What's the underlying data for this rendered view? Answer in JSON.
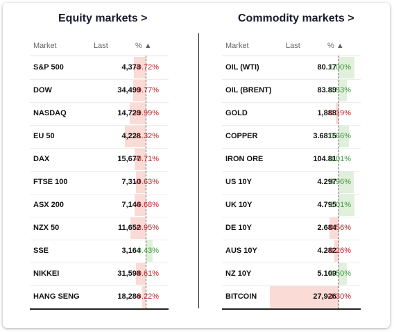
{
  "equity": {
    "title": "Equity markets >",
    "headers": {
      "market": "Market",
      "last": "Last",
      "pct": "% ▲"
    },
    "rows": [
      {
        "name": "S&P 500",
        "last": "4,373",
        "pct": "-0.72%",
        "value": -0.72
      },
      {
        "name": "DOW",
        "last": "34,499",
        "pct": "-0.77%",
        "value": -0.77
      },
      {
        "name": "NASDAQ",
        "last": "14,729",
        "pct": "-0.99%",
        "value": -0.99
      },
      {
        "name": "EU 50",
        "last": "4,228",
        "pct": "-1.32%",
        "value": -1.32
      },
      {
        "name": "DAX",
        "last": "15,677",
        "pct": "-0.71%",
        "value": -0.71
      },
      {
        "name": "FTSE 100",
        "last": "7,310",
        "pct": "-0.63%",
        "value": -0.63
      },
      {
        "name": "ASX 200",
        "last": "7,146",
        "pct": "-0.68%",
        "value": -0.68
      },
      {
        "name": "NZX 50",
        "last": "11,652",
        "pct": "-0.95%",
        "value": -0.95
      },
      {
        "name": "SSE",
        "last": "3,164",
        "pct": "0.43%",
        "value": 0.43
      },
      {
        "name": "NIKKEI",
        "last": "31,598",
        "pct": "-0.61%",
        "value": -0.61
      },
      {
        "name": "HANG SENG",
        "last": "18,286",
        "pct": "-0.22%",
        "value": -0.22
      }
    ]
  },
  "commodity": {
    "title": "Commodity markets >",
    "headers": {
      "market": "Market",
      "last": "Last",
      "pct": "% ▲"
    },
    "rows": [
      {
        "name": "OIL (WTI)",
        "last": "80.17",
        "pct": "1.00%",
        "value": 1.0
      },
      {
        "name": "OIL (BRENT)",
        "last": "83.89",
        "pct": "0.53%",
        "value": 0.53
      },
      {
        "name": "GOLD",
        "last": "1,888",
        "pct": "-0.19%",
        "value": -0.19
      },
      {
        "name": "COPPER",
        "last": "3.6815",
        "pct": "0.66%",
        "value": 0.66
      },
      {
        "name": "IRON ORE",
        "last": "104.81",
        "pct": "0.01%",
        "value": 0.01
      },
      {
        "name": "US 10Y",
        "last": "4.297",
        "pct": "0.96%",
        "value": 0.96
      },
      {
        "name": "UK 10Y",
        "last": "4.795",
        "pct": "1.01%",
        "value": 1.01
      },
      {
        "name": "DE 10Y",
        "last": "2.684",
        "pct": "-0.56%",
        "value": -0.56
      },
      {
        "name": "AUS 10Y",
        "last": "4.282",
        "pct": "-0.26%",
        "value": -0.26
      },
      {
        "name": "NZ 10Y",
        "last": "5.109",
        "pct": "0.50%",
        "value": 0.5
      },
      {
        "name": "BITCOIN",
        "last": "27,926",
        "pct": "-4.30%",
        "value": -4.3
      }
    ]
  },
  "colors": {
    "negative": "#c0202a",
    "negative_bg": "#fadbd5",
    "positive": "#3e9a3e",
    "positive_bg": "#e1f0da"
  }
}
